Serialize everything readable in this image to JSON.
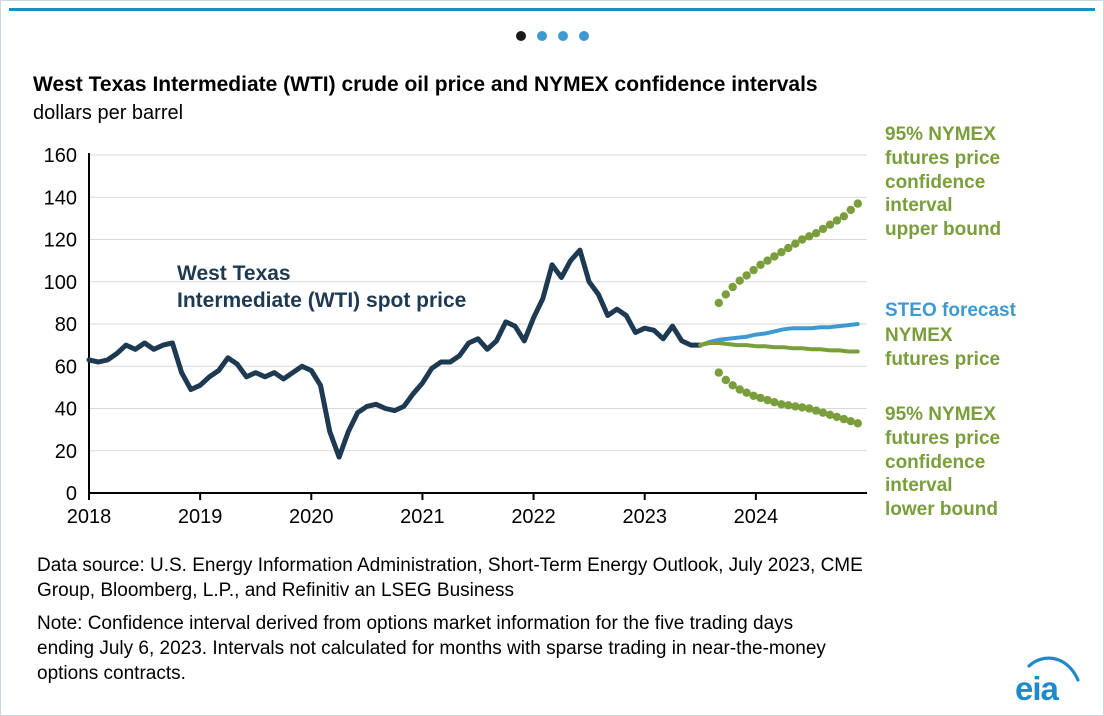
{
  "carousel": {
    "count": 4,
    "active_index": 0,
    "active_color": "#1b1b1b",
    "inactive_color": "#3d9ad1"
  },
  "header": {
    "title": "West Texas Intermediate (WTI) crude oil price and NYMEX confidence intervals",
    "subtitle": "dollars per barrel"
  },
  "chart_data": {
    "type": "line",
    "title": "West Texas Intermediate (WTI) crude oil price and NYMEX confidence intervals",
    "ylabel": "dollars per barrel",
    "xlim": [
      2018,
      2025
    ],
    "ylim": [
      0,
      160
    ],
    "yticks": [
      0,
      20,
      40,
      60,
      80,
      100,
      120,
      140,
      160
    ],
    "xticks": [
      2018,
      2019,
      2020,
      2021,
      2022,
      2023,
      2024
    ],
    "grid": "horizontal",
    "colors": {
      "navy": "#1d3a52",
      "blue": "#3d9ad1",
      "green": "#7a9e3b"
    },
    "series": [
      {
        "name": "West Texas Intermediate (WTI) spot price",
        "color_key": "navy",
        "style": "line",
        "width": 5,
        "x_start": 2018.0,
        "x_step": 0.083333,
        "y": [
          63,
          62,
          63,
          66,
          70,
          68,
          71,
          68,
          70,
          71,
          57,
          49,
          51,
          55,
          58,
          64,
          61,
          55,
          57,
          55,
          57,
          54,
          57,
          60,
          58,
          51,
          29,
          17,
          29,
          38,
          41,
          42,
          40,
          39,
          41,
          47,
          52,
          59,
          62,
          62,
          65,
          71,
          73,
          68,
          72,
          81,
          79,
          72,
          83,
          92,
          108,
          102,
          110,
          115,
          100,
          94,
          84,
          87,
          84,
          76,
          78,
          77,
          73,
          79,
          72,
          70,
          70
        ]
      },
      {
        "name": "STEO forecast",
        "color_key": "blue",
        "style": "line",
        "width": 4,
        "x_start": 2023.5,
        "x_step": 0.083333,
        "y": [
          70,
          71.5,
          72.5,
          73,
          73.5,
          74,
          75,
          75.5,
          76.5,
          77.5,
          78,
          78,
          78,
          78.5,
          78.5,
          79,
          79.5,
          80
        ]
      },
      {
        "name": "NYMEX futures price",
        "color_key": "green",
        "style": "line",
        "width": 4,
        "x_start": 2023.5,
        "x_step": 0.083333,
        "y": [
          70,
          71,
          71,
          70.5,
          70,
          70,
          69.5,
          69.5,
          69,
          69,
          68.5,
          68.5,
          68,
          68,
          67.5,
          67.5,
          67,
          67
        ]
      },
      {
        "name": "95% NYMEX futures price confidence interval upper bound",
        "color_key": "green",
        "style": "dots",
        "dot_r": 4.2,
        "x_start": 2023.667,
        "x_step": 0.0625,
        "y": [
          90,
          94,
          97.5,
          100.5,
          103,
          105.5,
          108,
          110,
          112,
          114,
          116,
          118,
          120,
          121.5,
          123,
          125,
          127,
          129,
          131,
          134,
          137
        ]
      },
      {
        "name": "95% NYMEX futures price confidence interval lower bound",
        "color_key": "green",
        "style": "dots",
        "dot_r": 4.2,
        "x_start": 2023.667,
        "x_step": 0.0625,
        "y": [
          57,
          53.5,
          51,
          49,
          47.5,
          46,
          45,
          44,
          43,
          42,
          41.5,
          41,
          40.5,
          40,
          39,
          38,
          37,
          36,
          35,
          34,
          33
        ]
      }
    ],
    "annotations": {
      "spot": "West Texas\nIntermediate (WTI) spot price",
      "upper_bound": "95% NYMEX\nfutures price\nconfidence\ninterval\nupper bound",
      "steo": "STEO forecast",
      "nymex": "NYMEX\nfutures price",
      "lower_bound": "95% NYMEX\nfutures price\nconfidence\ninterval\nlower bound"
    }
  },
  "footer": {
    "data_source": "Data source: U.S. Energy Information Administration, Short-Term Energy Outlook, July 2023, CME\nGroup, Bloomberg, L.P., and Refinitiv an LSEG Business",
    "note": "Note: Confidence interval derived from options market information for the five trading days\nending July 6, 2023. Intervals not calculated for months with sparse trading in near-the-money\noptions contracts."
  },
  "logo": {
    "text": "eia",
    "color": "#1f8ac9"
  },
  "accent": {
    "top_rule_color": "#1f8ac9"
  }
}
